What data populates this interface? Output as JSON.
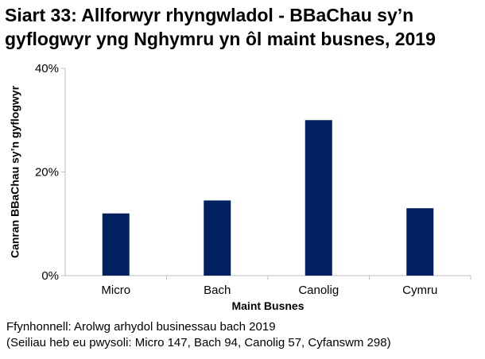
{
  "title": "Siart 33: Allforwyr rhyngwladol - BBaChau sy’n gyflogwyr yng Nghymru yn ôl maint busnes, 2019",
  "source_line1": "Ffynhonnell: Arolwg arhydol businessau bach 2019",
  "source_line2": "(Seiliau heb eu pwysoli: Micro 147, Bach 94, Canolig 57, Cyfanswm 298)",
  "colors": {
    "bar": "#002060",
    "axis": "#bfbfbf",
    "text": "#000000"
  },
  "chart_data": {
    "type": "bar",
    "title": "Siart 33: Allforwyr rhyngwladol - BBaChau sy’n gyflogwyr yng Nghymru yn ôl maint busnes, 2019",
    "xlabel": "Maint Busnes",
    "ylabel": "Canran BBaChau sy’n gyflogwyr",
    "categories": [
      "Micro",
      "Bach",
      "Canolig",
      "Cymru"
    ],
    "values": [
      12,
      14.5,
      30,
      13
    ],
    "ylim": [
      0,
      40
    ],
    "yticks": [
      0,
      20,
      40
    ],
    "ytick_labels": [
      "0%",
      "20%",
      "40%"
    ],
    "grid": false,
    "legend": "none"
  }
}
